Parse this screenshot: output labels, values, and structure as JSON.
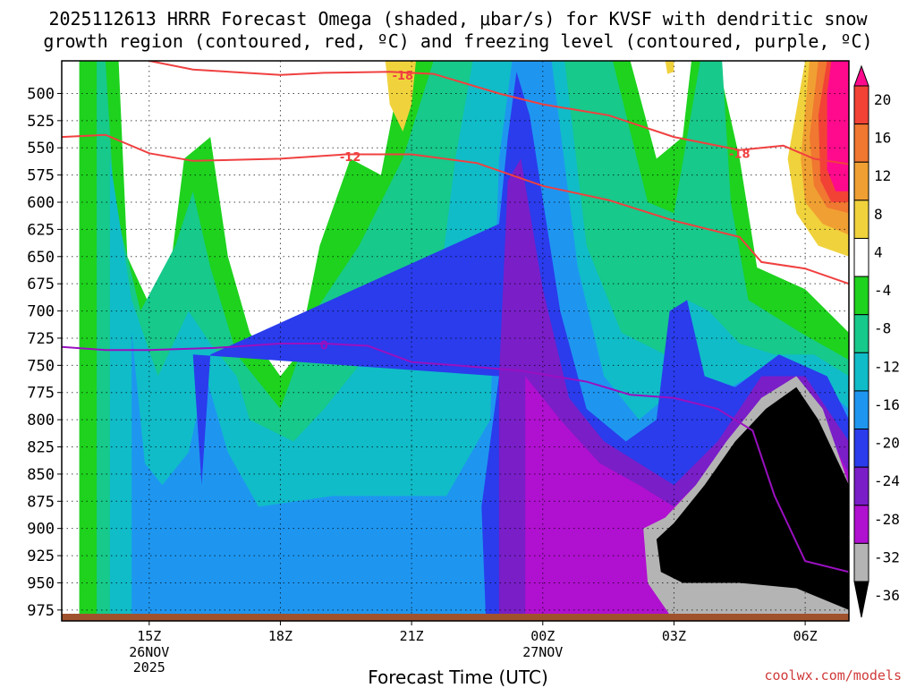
{
  "title_line1": "2025112613 HRRR Forecast Omega (shaded, μbar/s) for KVSF with dendritic snow",
  "title_line2": "growth region (contoured, red, ºC) and freezing level (contoured, purple, ºC)",
  "xaxis_title": "Forecast Time (UTC)",
  "credit": "coolwx.com/models",
  "chart_data": {
    "type": "heatmap",
    "title": "2025112613 HRRR Forecast Omega (shaded, μbar/s) for KVSF with dendritic snow growth region (contoured, red, ºC) and freezing level (contoured, purple, ºC)",
    "xlabel": "Forecast Time (UTC)",
    "ylabel": "",
    "y_ticks": [
      500,
      525,
      550,
      575,
      600,
      625,
      650,
      675,
      700,
      725,
      750,
      775,
      800,
      825,
      850,
      875,
      900,
      925,
      950,
      975
    ],
    "y_range": [
      470,
      985
    ],
    "y_inverted": true,
    "x_ticks": [
      {
        "hour": 15,
        "label": "15Z",
        "sub": [
          "26NOV",
          "2025"
        ]
      },
      {
        "hour": 18,
        "label": "18Z",
        "sub": []
      },
      {
        "hour": 21,
        "label": "21Z",
        "sub": []
      },
      {
        "hour": 24,
        "label": "00Z",
        "sub": [
          "27NOV"
        ]
      },
      {
        "hour": 27,
        "label": "03Z",
        "sub": []
      },
      {
        "hour": 30,
        "label": "06Z",
        "sub": []
      }
    ],
    "x_range_hours": [
      13.0,
      31.0
    ],
    "grid": true,
    "colorbar": {
      "tick_labels": [
        "20",
        "16",
        "12",
        "8",
        "4",
        "-4",
        "-8",
        "-12",
        "-16",
        "-20",
        "-24",
        "-28",
        "-32",
        "-36"
      ],
      "bins": [
        {
          "color": "#ff0a8c"
        },
        {
          "color": "#f24236"
        },
        {
          "color": "#f07830"
        },
        {
          "color": "#f0a032"
        },
        {
          "color": "#f0d23c"
        },
        {
          "color": "#ffffff"
        },
        {
          "color": "#1ed21e"
        },
        {
          "color": "#17c98a"
        },
        {
          "color": "#10bcc8"
        },
        {
          "color": "#1e96f0"
        },
        {
          "color": "#2a3cec"
        },
        {
          "color": "#7a1ec8"
        },
        {
          "color": "#b010d0"
        },
        {
          "color": "#b4b4b4"
        },
        {
          "color": "#000000"
        }
      ]
    },
    "contours": [
      {
        "label": "-18",
        "color": "#f04040",
        "points": [
          [
            15.0,
            470
          ],
          [
            16.0,
            478
          ],
          [
            18.0,
            483
          ],
          [
            19.0,
            481
          ],
          [
            20.5,
            480
          ],
          [
            21.5,
            482
          ],
          [
            23.0,
            500
          ],
          [
            24.0,
            510
          ],
          [
            25.5,
            520
          ],
          [
            27.0,
            540
          ],
          [
            28.5,
            552
          ],
          [
            29.5,
            548
          ],
          [
            30.2,
            560
          ],
          [
            31.0,
            565
          ]
        ]
      },
      {
        "label": "-12",
        "color": "#f04040",
        "points": [
          [
            13.0,
            540
          ],
          [
            14.0,
            538
          ],
          [
            15.0,
            555
          ],
          [
            16.0,
            562
          ],
          [
            18.0,
            560
          ],
          [
            19.5,
            556
          ],
          [
            21.0,
            556
          ],
          [
            22.5,
            564
          ],
          [
            24.0,
            585
          ],
          [
            25.5,
            598
          ],
          [
            27.0,
            617
          ],
          [
            28.5,
            632
          ],
          [
            29.0,
            655
          ],
          [
            30.0,
            661
          ],
          [
            31.0,
            675
          ]
        ]
      },
      {
        "label": "0",
        "color": "#9a10c0",
        "points": [
          [
            13.0,
            733
          ],
          [
            14.0,
            736
          ],
          [
            15.0,
            736
          ],
          [
            16.5,
            734
          ],
          [
            18.0,
            730
          ],
          [
            19.0,
            730
          ],
          [
            20.0,
            732
          ],
          [
            21.0,
            747
          ],
          [
            22.0,
            750
          ],
          [
            23.5,
            755
          ],
          [
            25.0,
            765
          ],
          [
            26.0,
            777
          ],
          [
            27.0,
            780
          ],
          [
            28.0,
            790
          ],
          [
            28.8,
            810
          ],
          [
            29.3,
            870
          ],
          [
            30.0,
            930
          ],
          [
            31.0,
            940
          ]
        ]
      }
    ]
  }
}
